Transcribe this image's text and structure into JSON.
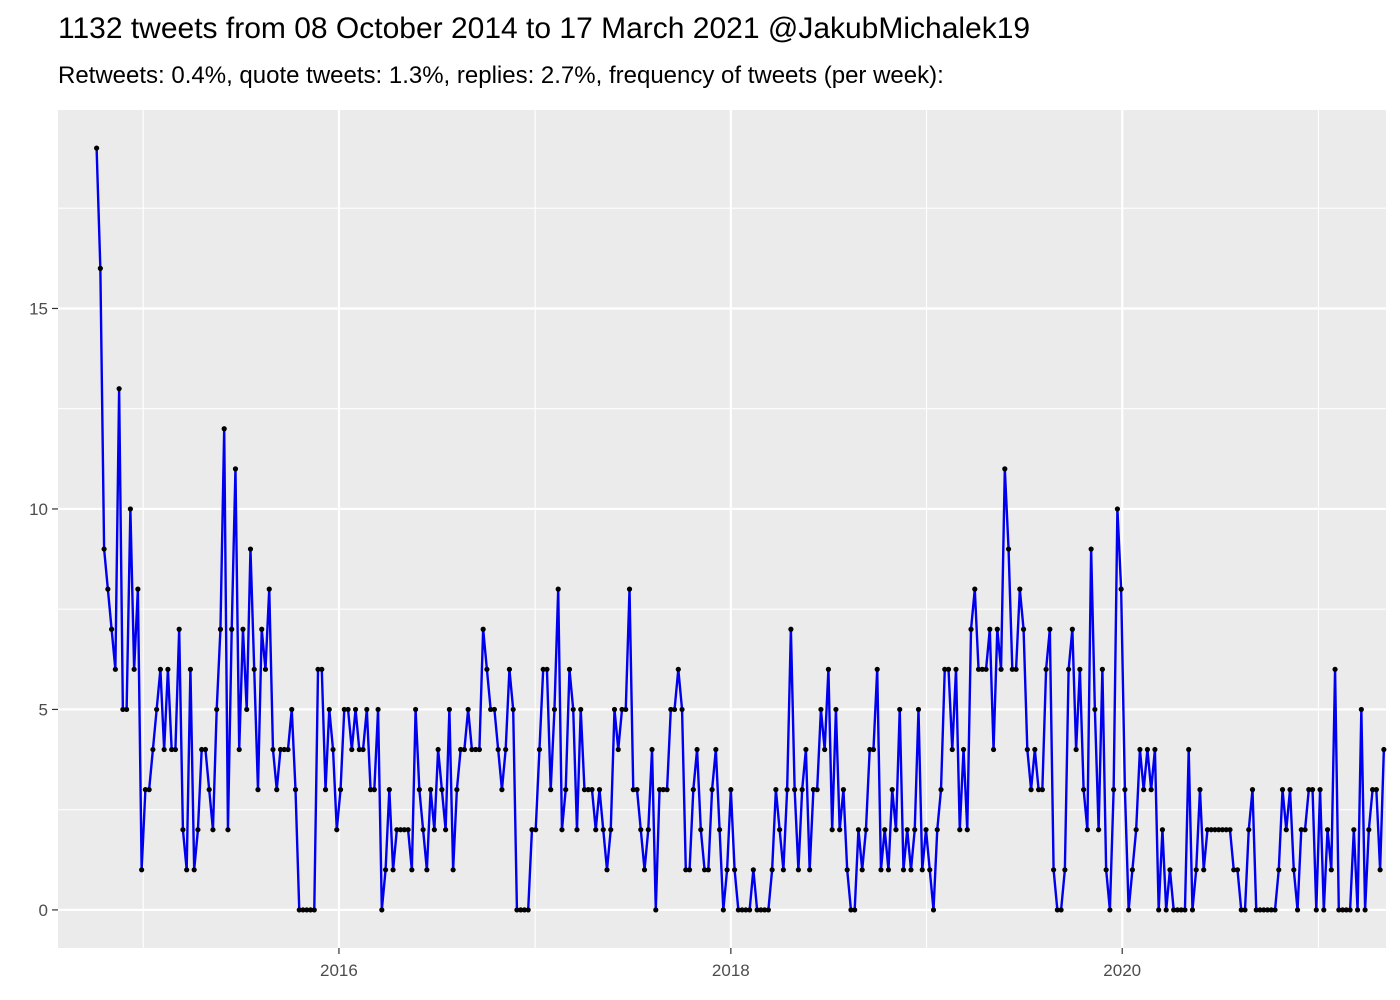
{
  "chart_data": {
    "type": "line",
    "title": "1132 tweets from 08 October 2014 to 17 March 2021 @JakubMichalek19",
    "subtitle": "Retweets: 0.4%, quote tweets: 1.3%, replies: 2.7%, frequency of tweets (per week):",
    "xlabel": "",
    "ylabel": "",
    "x_start": "2014-10-06",
    "x_step_days": 7,
    "xlim": [
      "2014-07-26",
      "2021-05-07"
    ],
    "ylim": [
      -0.95,
      19.95
    ],
    "x_ticks": [
      {
        "label": "2016",
        "date": "2016-01-01"
      },
      {
        "label": "2018",
        "date": "2018-01-01"
      },
      {
        "label": "2020",
        "date": "2020-01-01"
      }
    ],
    "x_minor_dates": [
      "2015-01-01",
      "2017-01-01",
      "2019-01-01",
      "2021-01-01"
    ],
    "y_ticks": [
      0,
      5,
      10,
      15
    ],
    "grid": true,
    "legend": "none",
    "colors": {
      "panel": "#ebebeb",
      "grid": "#ffffff",
      "line": "#0000ee",
      "point": "#000000"
    },
    "series": [
      {
        "values": [
          19,
          16,
          9,
          8,
          7,
          6,
          13,
          5,
          5,
          10,
          6,
          8,
          1,
          3,
          3,
          4,
          5,
          6,
          4,
          6,
          4,
          4,
          7,
          2,
          1,
          6,
          1,
          2,
          4,
          4,
          3,
          2,
          5,
          7,
          12,
          2,
          7,
          11,
          4,
          7,
          5,
          9,
          6,
          3,
          7,
          6,
          8,
          4,
          3,
          4,
          4,
          4,
          5,
          3,
          0,
          0,
          0,
          0,
          0,
          6,
          6,
          3,
          5,
          4,
          2,
          3,
          5,
          5,
          4,
          5,
          4,
          4,
          5,
          3,
          3,
          5,
          0,
          1,
          3,
          1,
          2,
          2,
          2,
          2,
          1,
          5,
          3,
          2,
          1,
          3,
          2,
          4,
          3,
          2,
          5,
          1,
          3,
          4,
          4,
          5,
          4,
          4,
          4,
          7,
          6,
          5,
          5,
          4,
          3,
          4,
          6,
          5,
          0,
          0,
          0,
          0,
          2,
          2,
          4,
          6,
          6,
          3,
          5,
          8,
          2,
          3,
          6,
          5,
          2,
          5,
          3,
          3,
          3,
          2,
          3,
          2,
          1,
          2,
          5,
          4,
          5,
          5,
          8,
          3,
          3,
          2,
          1,
          2,
          4,
          0,
          3,
          3,
          3,
          5,
          5,
          6,
          5,
          1,
          1,
          3,
          4,
          2,
          1,
          1,
          3,
          4,
          2,
          0,
          1,
          3,
          1,
          0,
          0,
          0,
          0,
          1,
          0,
          0,
          0,
          0,
          1,
          3,
          2,
          1,
          3,
          7,
          3,
          1,
          3,
          4,
          1,
          3,
          3,
          5,
          4,
          6,
          2,
          5,
          2,
          3,
          1,
          0,
          0,
          2,
          1,
          2,
          4,
          4,
          6,
          1,
          2,
          1,
          3,
          2,
          5,
          1,
          2,
          1,
          2,
          5,
          1,
          2,
          1,
          0,
          2,
          3,
          6,
          6,
          4,
          6,
          2,
          4,
          2,
          7,
          8,
          6,
          6,
          6,
          7,
          4,
          7,
          6,
          11,
          9,
          6,
          6,
          8,
          7,
          4,
          3,
          4,
          3,
          3,
          6,
          7,
          1,
          0,
          0,
          1,
          6,
          7,
          4,
          6,
          3,
          2,
          9,
          5,
          2,
          6,
          1,
          0,
          3,
          10,
          8,
          3,
          0,
          1,
          2,
          4,
          3,
          4,
          3,
          4,
          0,
          2,
          0,
          1,
          0,
          0,
          0,
          0,
          4,
          0,
          1,
          3,
          1,
          2,
          2,
          2,
          2,
          2,
          2,
          2,
          1,
          1,
          0,
          0,
          2,
          3,
          0,
          0,
          0,
          0,
          0,
          0,
          1,
          3,
          2,
          3,
          1,
          0,
          2,
          2,
          3,
          3,
          0,
          3,
          0,
          2,
          1,
          6,
          0,
          0,
          0,
          0,
          2,
          0,
          5,
          0,
          2,
          3,
          3,
          1,
          4
        ]
      }
    ]
  }
}
